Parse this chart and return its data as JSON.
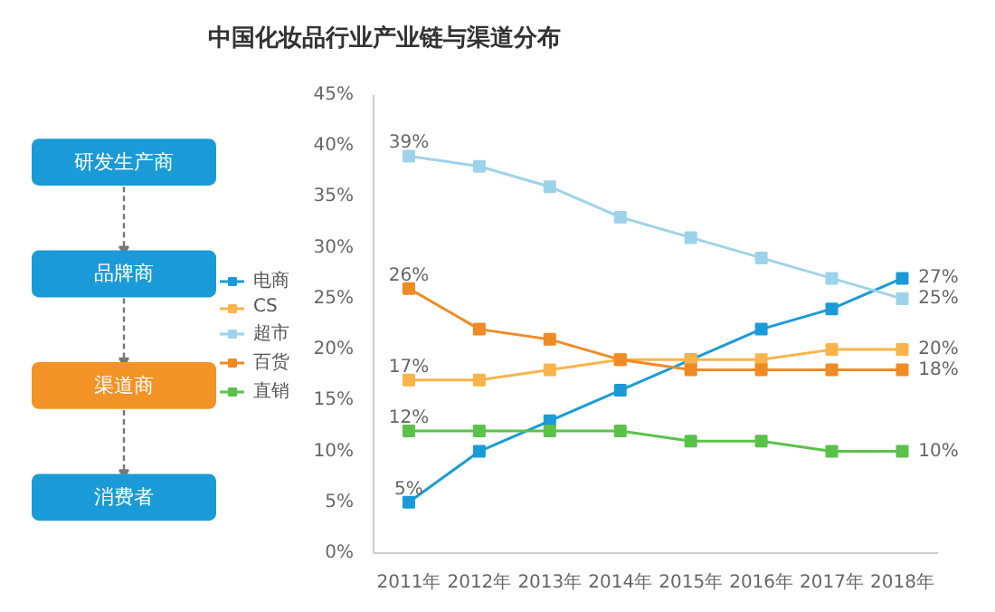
{
  "chart_data": [
    {
      "type": "other",
      "title": "中国化妆品行业产业链与渠道分布",
      "annotations": [
        "研发生产商",
        "品牌商",
        "渠道商",
        "消费者"
      ]
    },
    {
      "type": "line",
      "categories": [
        "2011年",
        "2012年",
        "2013年",
        "2014年",
        "2015年",
        "2016年",
        "2017年",
        "2018年"
      ],
      "ylim": [
        0,
        45
      ],
      "yticks": [
        {
          "value": 0,
          "label": "0%"
        },
        {
          "value": 5,
          "label": "5%"
        },
        {
          "value": 10,
          "label": "10%"
        },
        {
          "value": 15,
          "label": "15%"
        },
        {
          "value": 20,
          "label": "20%"
        },
        {
          "value": 25,
          "label": "25%"
        },
        {
          "value": 30,
          "label": "30%"
        },
        {
          "value": 35,
          "label": "35%"
        },
        {
          "value": 40,
          "label": "40%"
        },
        {
          "value": 45,
          "label": "45%"
        }
      ],
      "marker": "square",
      "grid": false,
      "legend": "left",
      "series": [
        {
          "name": "电商",
          "color": "#1a9bd7",
          "values": [
            5,
            10,
            13,
            16,
            19,
            22,
            24,
            27
          ],
          "value_labels": [
            "5%",
            null,
            null,
            null,
            null,
            null,
            null,
            "27%"
          ]
        },
        {
          "name": "CS",
          "color": "#f9b44a",
          "values": [
            17,
            17,
            18,
            19,
            19,
            19,
            20,
            20
          ],
          "value_labels": [
            "17%",
            null,
            null,
            null,
            null,
            null,
            null,
            "20%"
          ]
        },
        {
          "name": "超市",
          "color": "#9dd3ea",
          "values": [
            39,
            38,
            36,
            33,
            31,
            29,
            27,
            25
          ],
          "value_labels": [
            "39%",
            null,
            null,
            null,
            null,
            null,
            null,
            "25%"
          ]
        },
        {
          "name": "百货",
          "color": "#f08a24",
          "values": [
            26,
            22,
            21,
            19,
            18,
            18,
            18,
            18
          ],
          "value_labels": [
            "26%",
            null,
            null,
            null,
            null,
            null,
            null,
            "18%"
          ]
        },
        {
          "name": "直销",
          "color": "#5ac24a",
          "values": [
            12,
            12,
            12,
            12,
            11,
            11,
            10,
            10
          ],
          "value_labels": [
            "12%",
            null,
            null,
            null,
            null,
            null,
            null,
            "10%"
          ]
        }
      ]
    }
  ]
}
